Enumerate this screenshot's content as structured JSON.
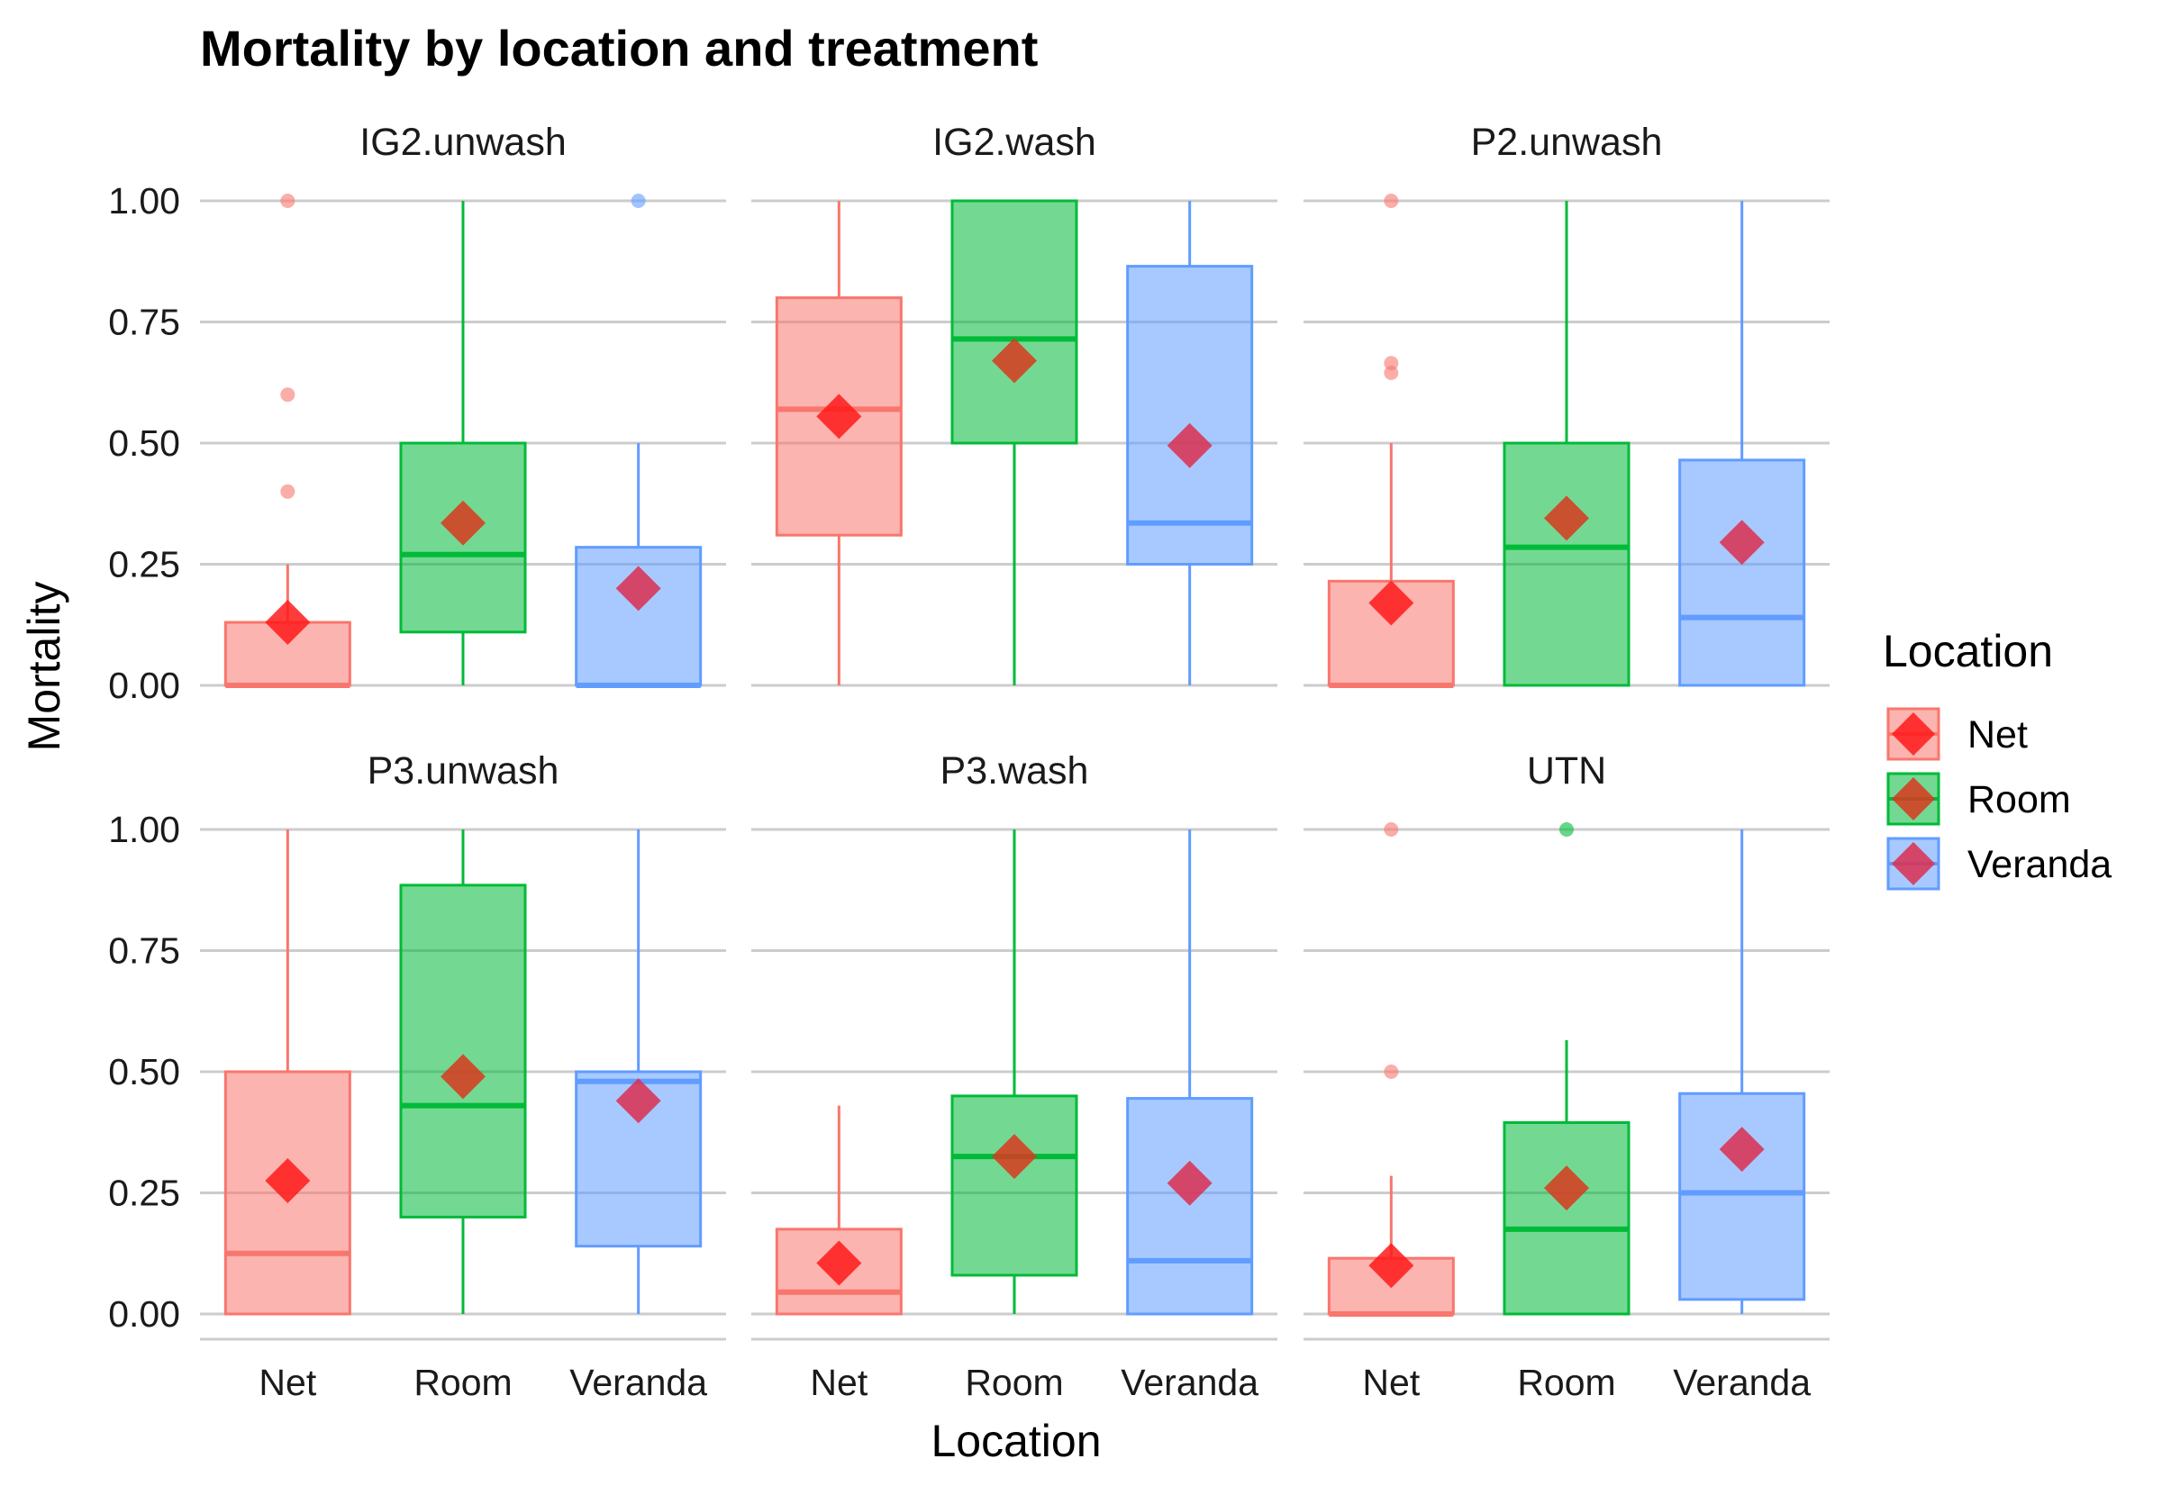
{
  "chart_data": {
    "type": "box",
    "title": "Mortality by location and treatment",
    "xlabel": "Location",
    "ylabel": "Mortality",
    "ylim": [
      0,
      1
    ],
    "yticks": [
      "0.00",
      "0.25",
      "0.50",
      "0.75",
      "1.00"
    ],
    "ytick_values": [
      0,
      0.25,
      0.5,
      0.75,
      1
    ],
    "categories": [
      "Net",
      "Room",
      "Veranda"
    ],
    "colors": {
      "Net": "#f8766d",
      "Room": "#00ba38",
      "Veranda": "#619cff"
    },
    "mean_colors": {
      "Net": "#ff1a1a",
      "Room": "#d9381e",
      "Veranda": "#dc2f4f"
    },
    "legend": {
      "title": "Location",
      "entries": [
        "Net",
        "Room",
        "Veranda"
      ],
      "position": "right"
    },
    "grid": "horizontal",
    "facets": [
      {
        "label": "IG2.unwash",
        "boxes": [
          {
            "category": "Net",
            "lower": 0,
            "q1": 0,
            "median": 0,
            "q3": 0.13,
            "upper": 0.25,
            "mean": 0.13,
            "outliers": [
              1.0,
              0.6,
              0.4
            ]
          },
          {
            "category": "Room",
            "lower": 0,
            "q1": 0.11,
            "median": 0.27,
            "q3": 0.5,
            "upper": 1.0,
            "mean": 0.335,
            "outliers": []
          },
          {
            "category": "Veranda",
            "lower": 0,
            "q1": 0,
            "median": 0,
            "q3": 0.285,
            "upper": 0.5,
            "mean": 0.2,
            "outliers": [
              1.0
            ]
          }
        ]
      },
      {
        "label": "IG2.wash",
        "boxes": [
          {
            "category": "Net",
            "lower": 0,
            "q1": 0.31,
            "median": 0.57,
            "q3": 0.8,
            "upper": 1.0,
            "mean": 0.555,
            "outliers": []
          },
          {
            "category": "Room",
            "lower": 0,
            "q1": 0.5,
            "median": 0.715,
            "q3": 1.0,
            "upper": 1.0,
            "mean": 0.67,
            "outliers": []
          },
          {
            "category": "Veranda",
            "lower": 0,
            "q1": 0.25,
            "median": 0.335,
            "q3": 0.865,
            "upper": 1.0,
            "mean": 0.495,
            "outliers": []
          }
        ]
      },
      {
        "label": "P2.unwash",
        "boxes": [
          {
            "category": "Net",
            "lower": 0,
            "q1": 0,
            "median": 0,
            "q3": 0.215,
            "upper": 0.5,
            "mean": 0.17,
            "outliers": [
              1.0,
              0.665,
              0.645
            ]
          },
          {
            "category": "Room",
            "lower": 0,
            "q1": 0,
            "median": 0.285,
            "q3": 0.5,
            "upper": 1.0,
            "mean": 0.345,
            "outliers": []
          },
          {
            "category": "Veranda",
            "lower": 0,
            "q1": 0,
            "median": 0.14,
            "q3": 0.465,
            "upper": 1.0,
            "mean": 0.295,
            "outliers": []
          }
        ]
      },
      {
        "label": "P3.unwash",
        "boxes": [
          {
            "category": "Net",
            "lower": 0,
            "q1": 0,
            "median": 0.125,
            "q3": 0.5,
            "upper": 1.0,
            "mean": 0.275,
            "outliers": []
          },
          {
            "category": "Room",
            "lower": 0,
            "q1": 0.2,
            "median": 0.43,
            "q3": 0.885,
            "upper": 1.0,
            "mean": 0.49,
            "outliers": []
          },
          {
            "category": "Veranda",
            "lower": 0,
            "q1": 0.14,
            "median": 0.48,
            "q3": 0.5,
            "upper": 1.0,
            "mean": 0.44,
            "outliers": []
          }
        ]
      },
      {
        "label": "P3.wash",
        "boxes": [
          {
            "category": "Net",
            "lower": 0,
            "q1": 0,
            "median": 0.045,
            "q3": 0.175,
            "upper": 0.43,
            "mean": 0.105,
            "outliers": []
          },
          {
            "category": "Room",
            "lower": 0,
            "q1": 0.08,
            "median": 0.325,
            "q3": 0.45,
            "upper": 1.0,
            "mean": 0.325,
            "outliers": []
          },
          {
            "category": "Veranda",
            "lower": 0,
            "q1": 0,
            "median": 0.11,
            "q3": 0.445,
            "upper": 1.0,
            "mean": 0.27,
            "outliers": []
          }
        ]
      },
      {
        "label": "UTN",
        "boxes": [
          {
            "category": "Net",
            "lower": 0,
            "q1": 0,
            "median": 0,
            "q3": 0.115,
            "upper": 0.285,
            "mean": 0.1,
            "outliers": [
              1.0,
              0.5
            ]
          },
          {
            "category": "Room",
            "lower": 0,
            "q1": 0,
            "median": 0.175,
            "q3": 0.395,
            "upper": 0.565,
            "mean": 0.26,
            "outliers": [
              1.0
            ]
          },
          {
            "category": "Veranda",
            "lower": 0,
            "q1": 0.03,
            "median": 0.25,
            "q3": 0.455,
            "upper": 1.0,
            "mean": 0.34,
            "outliers": []
          }
        ]
      }
    ]
  }
}
